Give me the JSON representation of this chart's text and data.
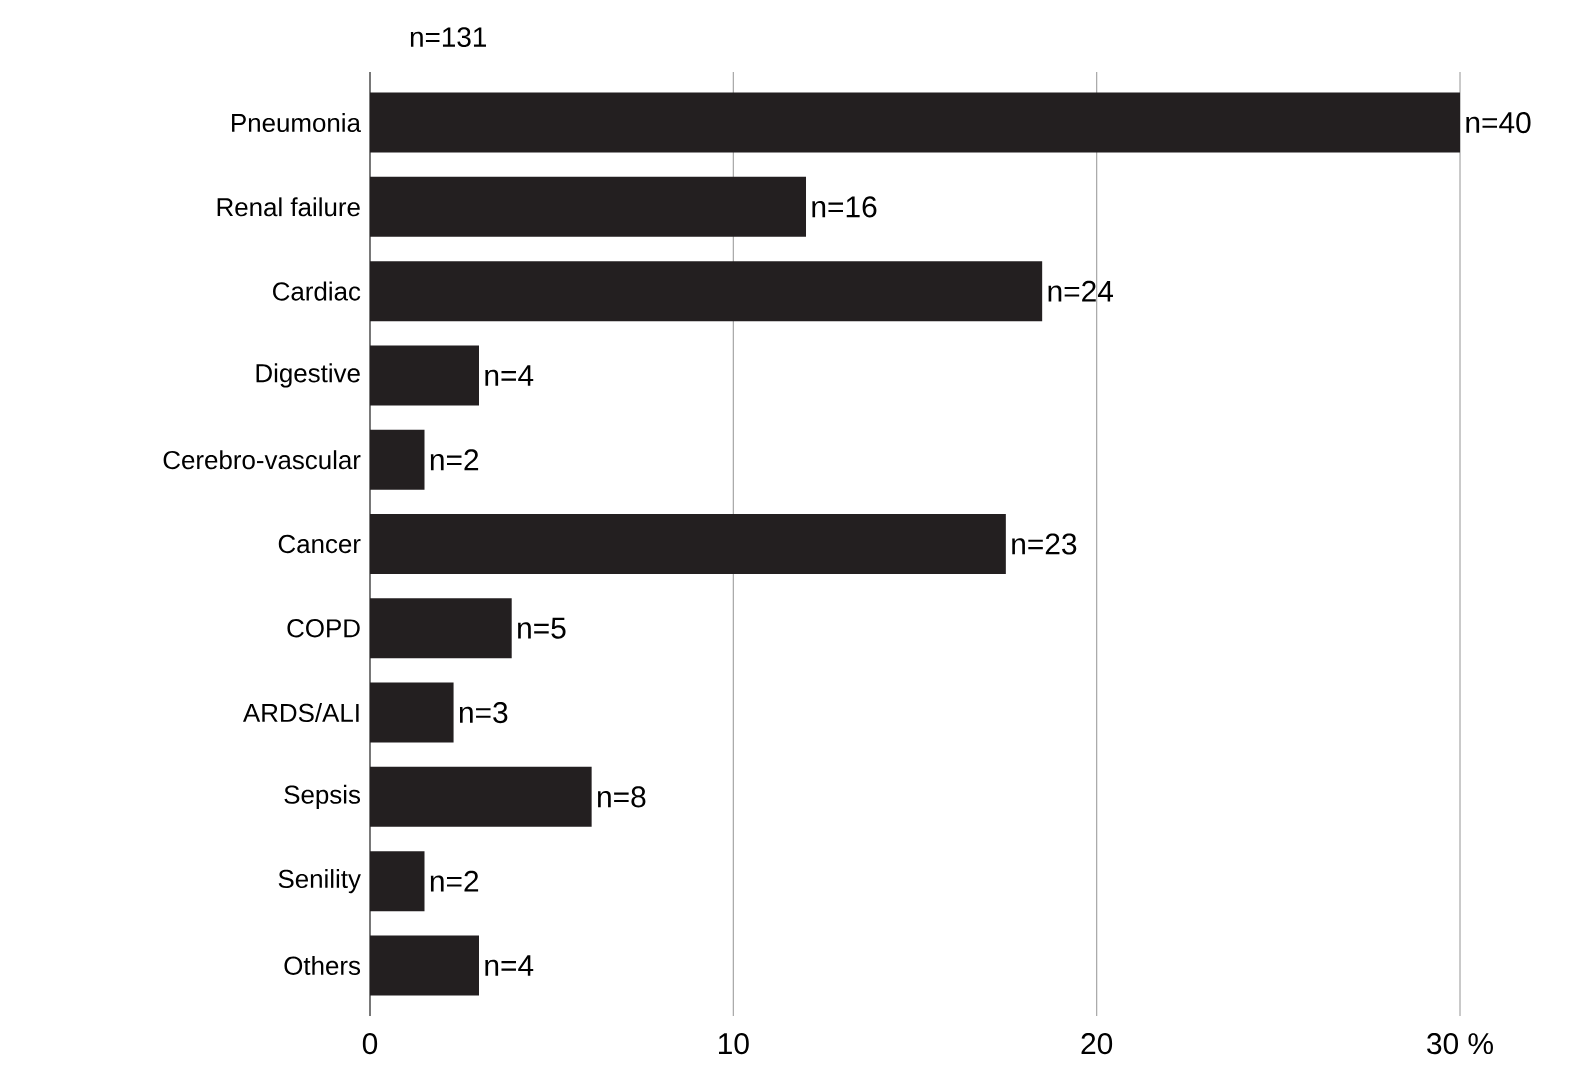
{
  "chart_data": {
    "type": "bar",
    "orientation": "horizontal",
    "categories": [
      "Pneumonia",
      "Renal failure",
      "Cardiac",
      "Digestive",
      "Cerebro-vascular",
      "Cancer",
      "COPD",
      "ARDS/ALI",
      "Sepsis",
      "Senility",
      "Others"
    ],
    "values": [
      30.0,
      12.0,
      18.5,
      3.0,
      1.5,
      17.5,
      3.9,
      2.3,
      6.1,
      1.5,
      3.0
    ],
    "color": "#231f20",
    "xlim": [
      0,
      30
    ],
    "xticks": [
      0,
      10,
      20,
      {
        "value": 30,
        "label": "30 %"
      }
    ],
    "grid": "x",
    "annotations": [
      "n=131",
      {
        "text": "n=40",
        "x": 30.0,
        "y": "Pneumonia"
      },
      {
        "text": "n=16",
        "x": 12.0,
        "y": "Renal failure"
      },
      {
        "text": "n=24",
        "x": 18.5,
        "y": "Cardiac"
      },
      {
        "text": "n=4",
        "x": 3.0,
        "y": "Digestive"
      },
      {
        "text": "n=2",
        "x": 1.5,
        "y": "Cerebro-vascular"
      },
      {
        "text": "n=23",
        "x": 17.5,
        "y": "Cancer"
      },
      {
        "text": "n=5",
        "x": 3.9,
        "y": "COPD"
      },
      {
        "text": "n=3",
        "x": 2.3,
        "y": "ARDS/ALI"
      },
      {
        "text": "n=8",
        "x": 6.1,
        "y": "Sepsis"
      },
      {
        "text": "n=2",
        "x": 1.5,
        "y": "Senility"
      },
      {
        "text": "n=4",
        "x": 3.0,
        "y": "Others"
      }
    ]
  }
}
